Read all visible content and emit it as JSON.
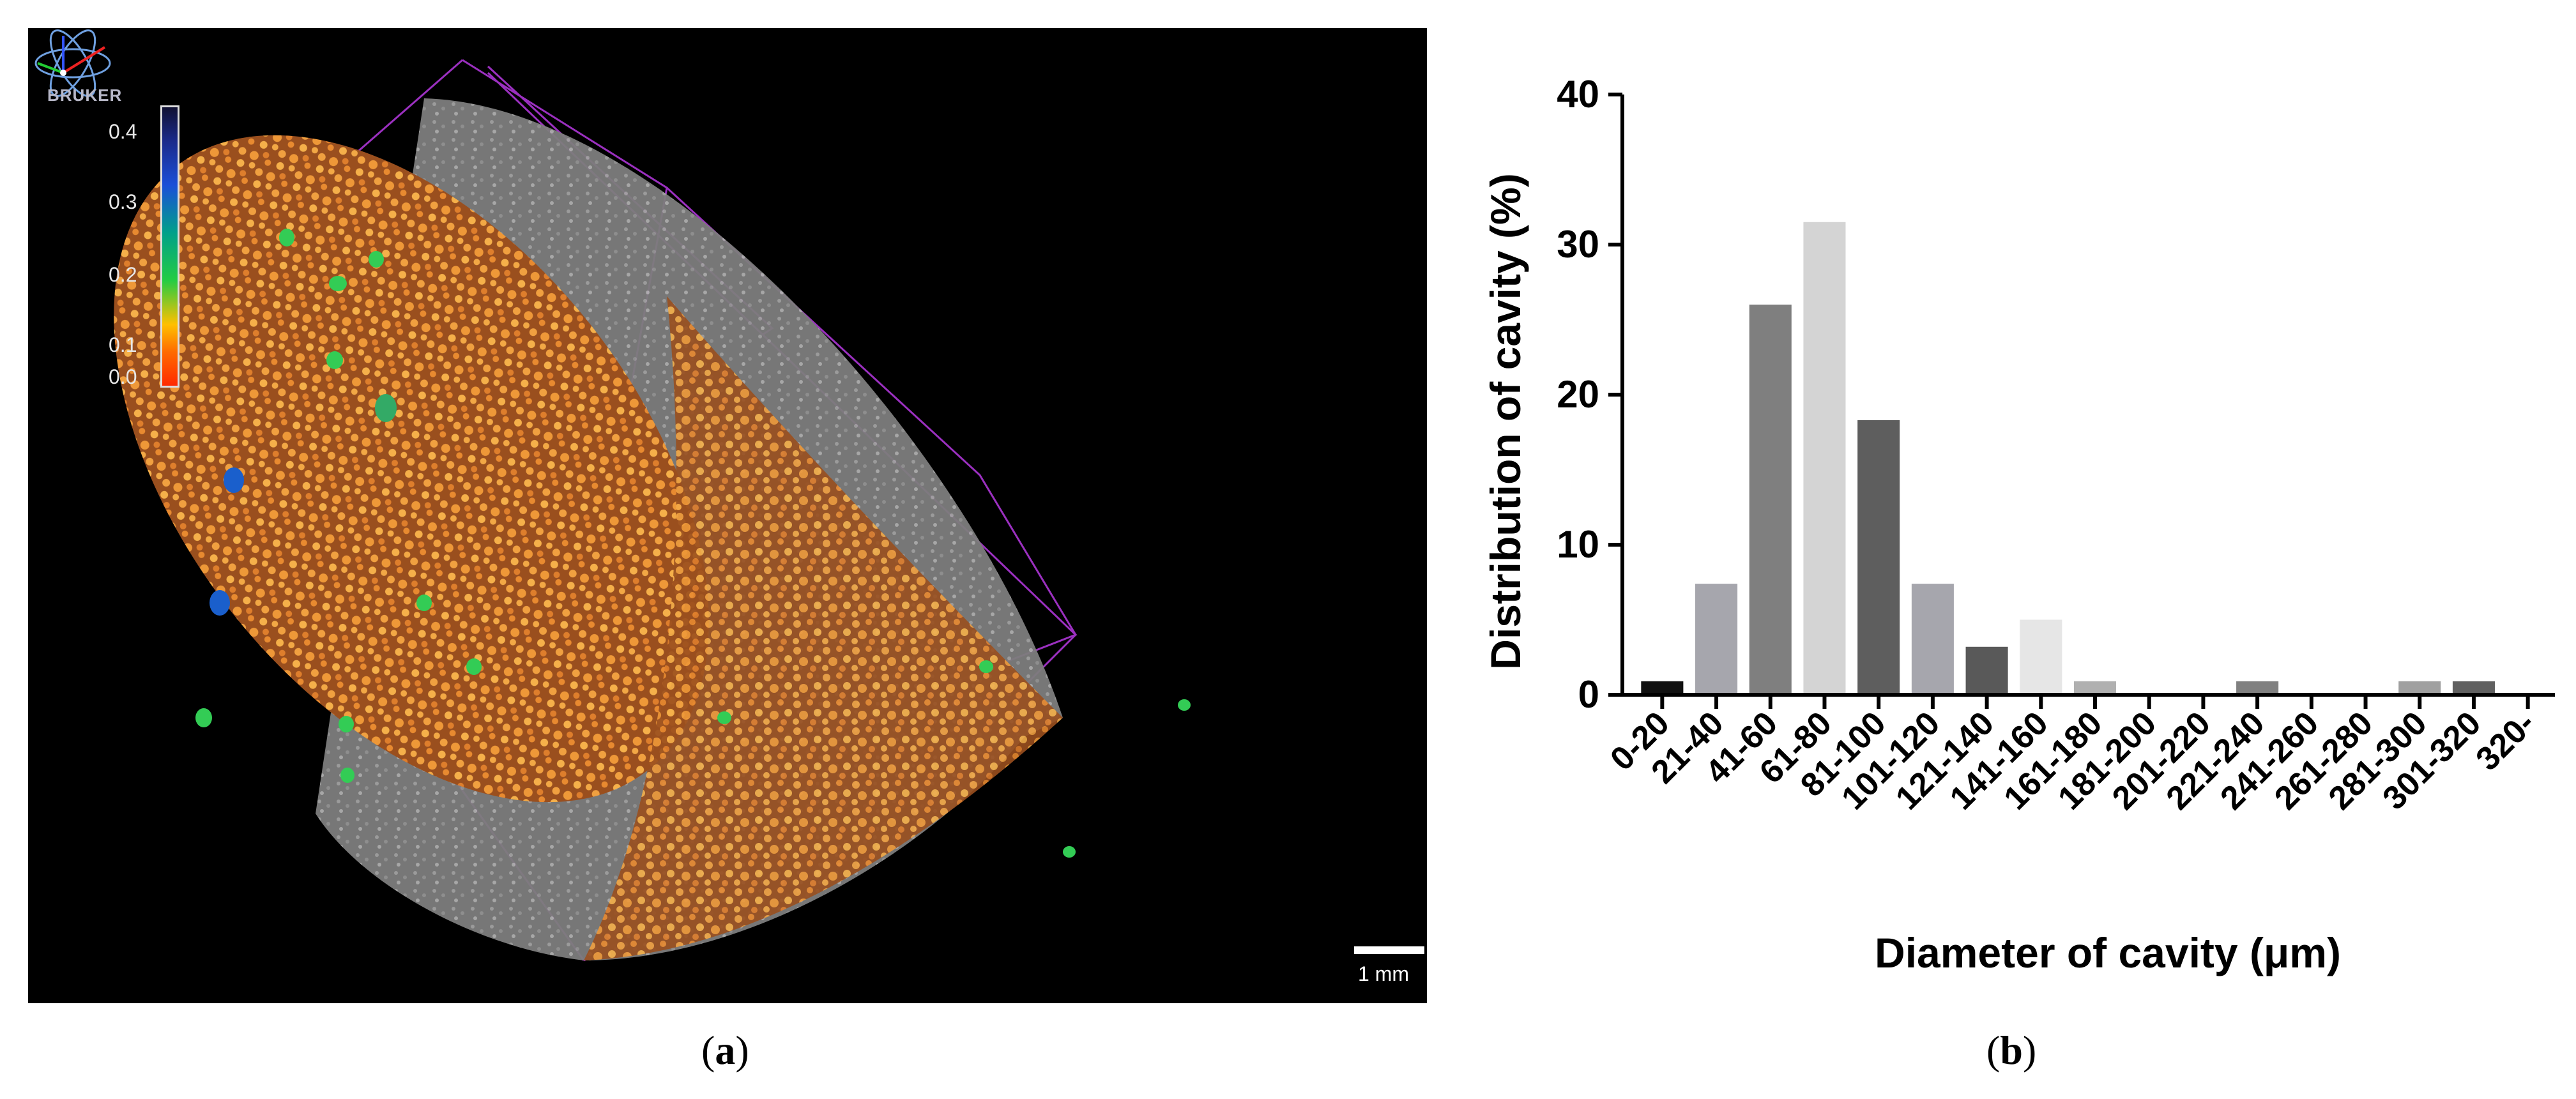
{
  "panel_a": {
    "caption_open": "(",
    "caption_letter": "a",
    "caption_close": ")",
    "logo_text": "BRUKER",
    "colorbar_ticks": [
      "0.4",
      "0.3",
      "0.2",
      "0.1",
      "0.0"
    ],
    "scale_bar_label": "1 mm"
  },
  "panel_b": {
    "caption_open": "(",
    "caption_letter": "b",
    "caption_close": ")"
  },
  "chart_data": {
    "type": "bar",
    "title": "",
    "xlabel": "Diameter of cavity (μm)",
    "ylabel": "Distribution of cavity (%)",
    "ylim": [
      0,
      40
    ],
    "yticks": [
      "0",
      "10",
      "20",
      "30",
      "40"
    ],
    "categories": [
      "0-20",
      "21-40",
      "41-60",
      "61-80",
      "81-100",
      "101-120",
      "121-140",
      "141-160",
      "161-180",
      "181-200",
      "201-220",
      "221-240",
      "241-260",
      "261-280",
      "281-300",
      "301-320",
      "320-"
    ],
    "values": [
      0.9,
      7.4,
      26.0,
      31.5,
      18.3,
      7.4,
      3.2,
      5.0,
      0.9,
      0,
      0,
      0.9,
      0,
      0,
      0.9,
      0.9,
      0
    ],
    "bar_colors": [
      "#111111",
      "#a6a6ad",
      "#7f7f7f",
      "#d4d4d4",
      "#5e5e5e",
      "#a6a6ad",
      "#595959",
      "#e6e6e6",
      "#b0b0b0",
      "#b0b0b0",
      "#b0b0b0",
      "#808080",
      "#b0b0b0",
      "#b0b0b0",
      "#a0a0a0",
      "#606060",
      "#b0b0b0"
    ]
  }
}
